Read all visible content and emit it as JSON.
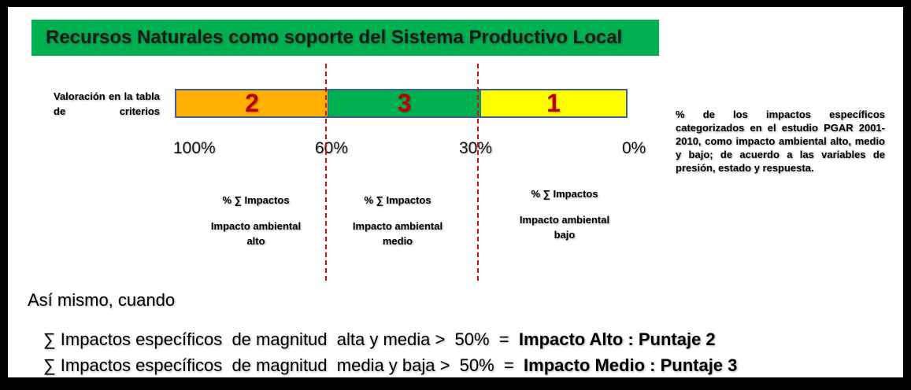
{
  "header": {
    "title": "Recursos Naturales  como soporte del Sistema Productivo Local"
  },
  "scale": {
    "label": "Valoración en la tabla de criterios",
    "segments": [
      "2",
      "3",
      "1"
    ],
    "percents": [
      "100%",
      "60%",
      "30%",
      "0%"
    ]
  },
  "columns": [
    {
      "heading": "% ∑ Impactos",
      "text": "Impacto ambiental alto"
    },
    {
      "heading": "% ∑ Impactos",
      "text": "Impacto ambiental medio"
    },
    {
      "heading": "% ∑ Impactos",
      "text": "Impacto ambiental bajo"
    }
  ],
  "note": "% de los impactos  específicos categorizados en el estudio PGAR 2001-2010,  como  impacto ambiental alto, medio y bajo; de acuerdo a las variables de presión, estado y respuesta.",
  "footer": {
    "intro": "Así mismo, cuando",
    "lines": [
      {
        "text": "∑ Impactos específicos  de magnitud  alta y media >  50%  =  ",
        "bold": "Impacto Alto : Puntaje 2"
      },
      {
        "text": "∑ Impactos específicos  de magnitud  media y baja >  50%  =  ",
        "bold": "Impacto Medio : Puntaje 3"
      }
    ]
  }
}
